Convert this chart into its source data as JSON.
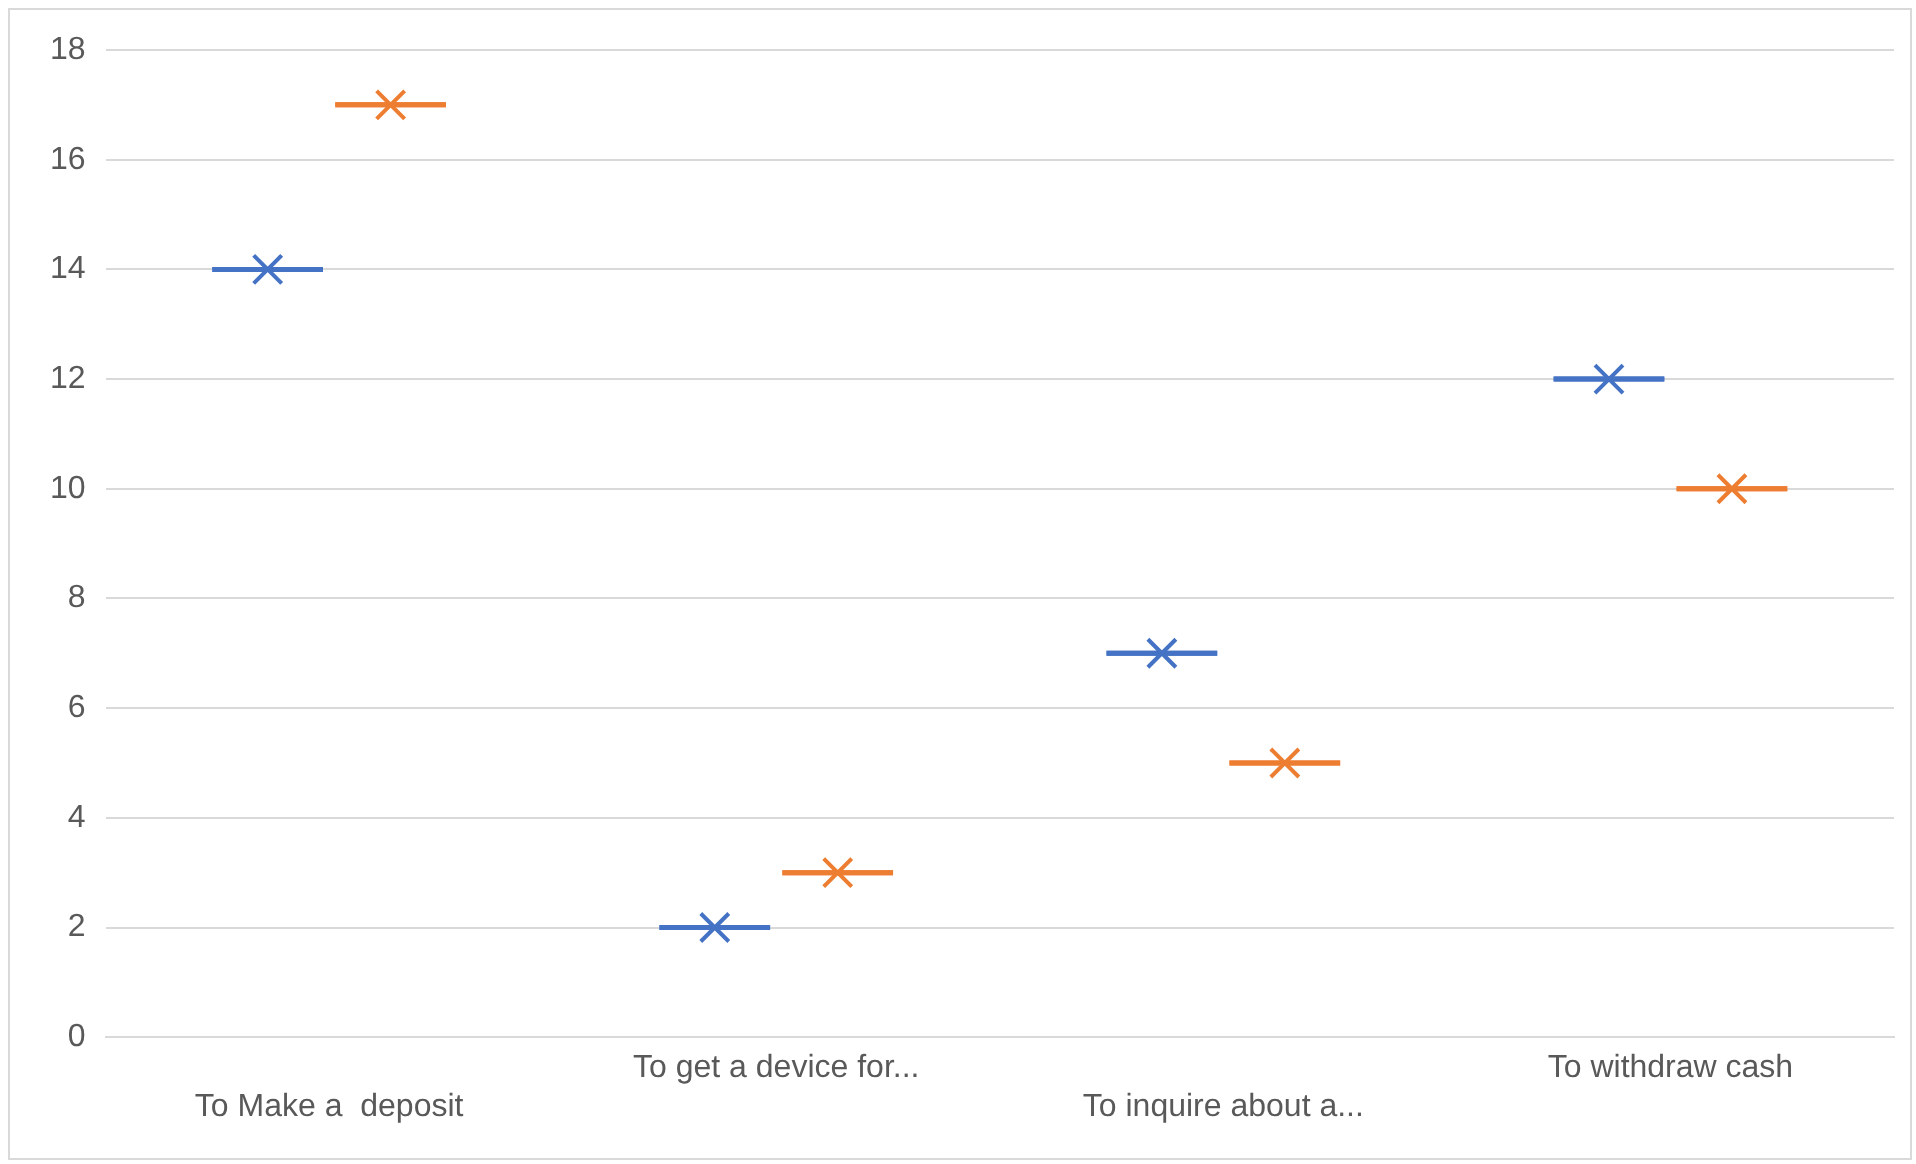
{
  "chart_data": {
    "type": "box",
    "categories": [
      "To Make a  deposit",
      "To get a device for...",
      "To inquire about a...",
      "To withdraw cash"
    ],
    "series": [
      {
        "color": "#4472c4",
        "boxes": [
          {
            "low": 14,
            "q1": 14,
            "median": 14,
            "q3": 14,
            "high": 14,
            "mean": 14
          },
          {
            "low": 2,
            "q1": 2,
            "median": 2,
            "q3": 2,
            "high": 2,
            "mean": 2
          },
          {
            "low": 7,
            "q1": 7,
            "median": 7,
            "q3": 7,
            "high": 7,
            "mean": 7
          },
          {
            "low": 12,
            "q1": 12,
            "median": 12,
            "q3": 12,
            "high": 12,
            "mean": 12
          }
        ]
      },
      {
        "color": "#ed7d31",
        "boxes": [
          {
            "low": 17,
            "q1": 17,
            "median": 17,
            "q3": 17,
            "high": 17,
            "mean": 17
          },
          {
            "low": 3,
            "q1": 3,
            "median": 3,
            "q3": 3,
            "high": 3,
            "mean": 3
          },
          {
            "low": 5,
            "q1": 5,
            "median": 5,
            "q3": 5,
            "high": 5,
            "mean": 5
          },
          {
            "low": 10,
            "q1": 10,
            "median": 10,
            "q3": 10,
            "high": 10,
            "mean": 10
          }
        ]
      }
    ],
    "ylim": [
      0,
      18
    ],
    "yticks": [
      0,
      2,
      4,
      6,
      8,
      10,
      12,
      14,
      16,
      18
    ],
    "grid": "y",
    "legend": false
  }
}
